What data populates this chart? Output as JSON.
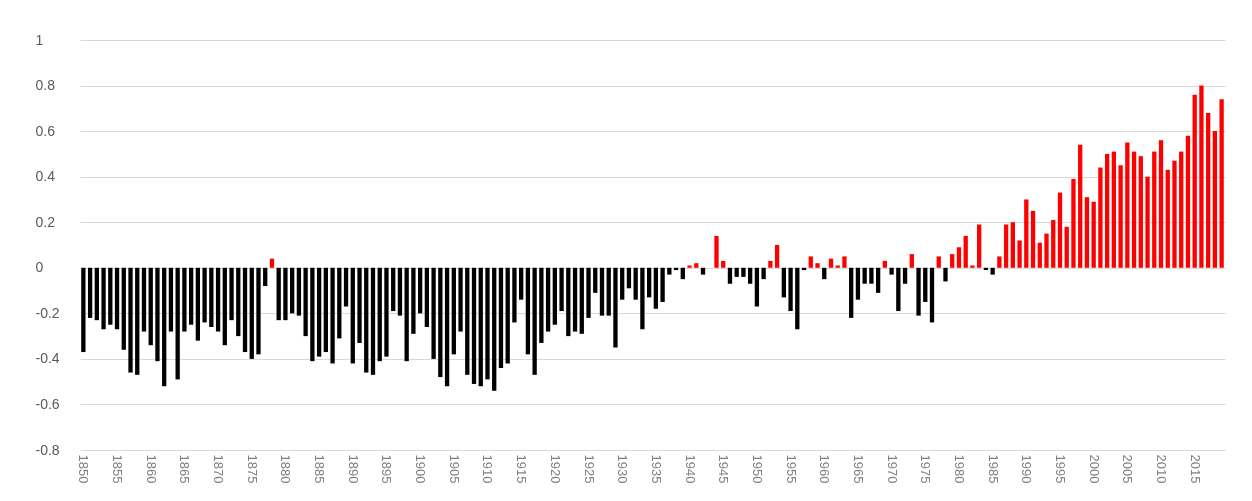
{
  "chart_data": {
    "type": "bar",
    "categories": [
      "1850",
      null,
      null,
      null,
      null,
      "1855",
      null,
      null,
      null,
      null,
      "1860",
      null,
      null,
      null,
      null,
      "1865",
      null,
      null,
      null,
      null,
      "1870",
      null,
      null,
      null,
      null,
      "1875",
      null,
      null,
      null,
      null,
      "1880",
      null,
      null,
      null,
      null,
      "1885",
      null,
      null,
      null,
      null,
      "1890",
      null,
      null,
      null,
      null,
      "1895",
      null,
      null,
      null,
      null,
      "1900",
      null,
      null,
      null,
      null,
      "1905",
      null,
      null,
      null,
      null,
      "1910",
      null,
      null,
      null,
      null,
      "1915",
      null,
      null,
      null,
      null,
      "1920",
      null,
      null,
      null,
      null,
      "1925",
      null,
      null,
      null,
      null,
      "1930",
      null,
      null,
      null,
      null,
      "1935",
      null,
      null,
      null,
      null,
      "1940",
      null,
      null,
      null,
      null,
      "1945",
      null,
      null,
      null,
      null,
      "1950",
      null,
      null,
      null,
      null,
      "1955",
      null,
      null,
      null,
      null,
      "1960",
      null,
      null,
      null,
      null,
      "1965",
      null,
      null,
      null,
      null,
      "1970",
      null,
      null,
      null,
      null,
      "1975",
      null,
      null,
      null,
      null,
      "1980",
      null,
      null,
      null,
      null,
      "1985",
      null,
      null,
      null,
      null,
      "1990",
      null,
      null,
      null,
      null,
      "1995",
      null,
      null,
      null,
      null,
      "2000",
      null,
      null,
      null,
      null,
      "2005",
      null,
      null,
      null,
      null,
      "2010",
      null,
      null,
      null,
      null,
      "2015",
      null,
      null,
      null,
      null
    ],
    "values": [
      -0.37,
      -0.22,
      -0.23,
      -0.27,
      -0.25,
      -0.27,
      -0.36,
      -0.46,
      -0.47,
      -0.28,
      -0.34,
      -0.41,
      -0.52,
      -0.28,
      -0.49,
      -0.28,
      -0.25,
      -0.32,
      -0.24,
      -0.26,
      -0.28,
      -0.34,
      -0.23,
      -0.3,
      -0.37,
      -0.4,
      -0.38,
      -0.08,
      0.04,
      -0.23,
      -0.23,
      -0.2,
      -0.21,
      -0.3,
      -0.41,
      -0.39,
      -0.37,
      -0.42,
      -0.31,
      -0.17,
      -0.42,
      -0.33,
      -0.46,
      -0.47,
      -0.41,
      -0.39,
      -0.19,
      -0.21,
      -0.41,
      -0.29,
      -0.2,
      -0.26,
      -0.4,
      -0.48,
      -0.52,
      -0.38,
      -0.28,
      -0.47,
      -0.51,
      -0.52,
      -0.49,
      -0.54,
      -0.44,
      -0.42,
      -0.24,
      -0.14,
      -0.38,
      -0.47,
      -0.33,
      -0.28,
      -0.25,
      -0.19,
      -0.3,
      -0.28,
      -0.29,
      -0.22,
      -0.11,
      -0.21,
      -0.21,
      -0.35,
      -0.14,
      -0.09,
      -0.14,
      -0.27,
      -0.13,
      -0.18,
      -0.15,
      -0.03,
      -0.01,
      -0.05,
      0.01,
      0.02,
      -0.03,
      0.0,
      0.14,
      0.03,
      -0.07,
      -0.04,
      -0.04,
      -0.07,
      -0.17,
      -0.05,
      0.03,
      0.1,
      -0.13,
      -0.19,
      -0.27,
      -0.01,
      0.05,
      0.02,
      -0.05,
      0.04,
      0.01,
      0.05,
      -0.22,
      -0.14,
      -0.07,
      -0.07,
      -0.11,
      0.03,
      -0.03,
      -0.19,
      -0.07,
      0.06,
      -0.21,
      -0.15,
      -0.24,
      0.05,
      -0.06,
      0.06,
      0.09,
      0.14,
      0.01,
      0.19,
      -0.01,
      -0.03,
      0.05,
      0.19,
      0.2,
      0.12,
      0.3,
      0.25,
      0.11,
      0.15,
      0.21,
      0.33,
      0.18,
      0.39,
      0.54,
      0.31,
      0.29,
      0.44,
      0.5,
      0.51,
      0.45,
      0.55,
      0.51,
      0.49,
      0.4,
      0.51,
      0.56,
      0.43,
      0.47,
      0.51,
      0.58,
      0.76,
      0.8,
      0.68,
      0.6,
      0.74
    ],
    "colors": [
      "#000000",
      "#000000",
      "#000000",
      "#000000",
      "#000000",
      "#000000",
      "#000000",
      "#000000",
      "#000000",
      "#000000",
      "#000000",
      "#000000",
      "#000000",
      "#000000",
      "#000000",
      "#000000",
      "#000000",
      "#000000",
      "#000000",
      "#000000",
      "#000000",
      "#000000",
      "#000000",
      "#000000",
      "#000000",
      "#000000",
      "#000000",
      "#000000",
      "#ff0000",
      "#000000",
      "#000000",
      "#000000",
      "#000000",
      "#000000",
      "#000000",
      "#000000",
      "#000000",
      "#000000",
      "#000000",
      "#000000",
      "#000000",
      "#000000",
      "#000000",
      "#000000",
      "#000000",
      "#000000",
      "#000000",
      "#000000",
      "#000000",
      "#000000",
      "#000000",
      "#000000",
      "#000000",
      "#000000",
      "#000000",
      "#000000",
      "#000000",
      "#000000",
      "#000000",
      "#000000",
      "#000000",
      "#000000",
      "#000000",
      "#000000",
      "#000000",
      "#000000",
      "#000000",
      "#000000",
      "#000000",
      "#000000",
      "#000000",
      "#000000",
      "#000000",
      "#000000",
      "#000000",
      "#000000",
      "#000000",
      "#000000",
      "#000000",
      "#000000",
      "#000000",
      "#000000",
      "#000000",
      "#000000",
      "#000000",
      "#000000",
      "#000000",
      "#000000",
      "#000000",
      "#000000",
      "#ff0000",
      "#ff0000",
      "#000000",
      "#000000",
      "#ff0000",
      "#ff0000",
      "#000000",
      "#000000",
      "#000000",
      "#000000",
      "#000000",
      "#000000",
      "#ff0000",
      "#ff0000",
      "#000000",
      "#000000",
      "#000000",
      "#000000",
      "#ff0000",
      "#ff0000",
      "#000000",
      "#ff0000",
      "#ff0000",
      "#ff0000",
      "#000000",
      "#000000",
      "#000000",
      "#000000",
      "#000000",
      "#ff0000",
      "#000000",
      "#000000",
      "#000000",
      "#ff0000",
      "#000000",
      "#000000",
      "#000000",
      "#ff0000",
      "#000000",
      "#ff0000",
      "#ff0000",
      "#ff0000",
      "#ff0000",
      "#ff0000",
      "#000000",
      "#000000",
      "#ff0000",
      "#ff0000",
      "#ff0000",
      "#ff0000",
      "#ff0000",
      "#ff0000",
      "#ff0000",
      "#ff0000",
      "#ff0000",
      "#ff0000",
      "#ff0000",
      "#ff0000",
      "#ff0000",
      "#ff0000",
      "#ff0000",
      "#ff0000",
      "#ff0000",
      "#ff0000",
      "#ff0000",
      "#ff0000",
      "#ff0000",
      "#ff0000",
      "#ff0000",
      "#ff0000",
      "#ff0000",
      "#ff0000",
      "#ff0000",
      "#ff0000",
      "#ff0000",
      "#ff0000",
      "#ff0000",
      "#ff0000",
      "#ff0000",
      "#ff0000"
    ],
    "ylim": [
      -0.8,
      1
    ],
    "yticks": [
      -0.8,
      -0.6,
      -0.4,
      -0.2,
      0,
      0.2,
      0.4,
      0.6,
      0.8,
      1
    ],
    "grid": "y"
  }
}
